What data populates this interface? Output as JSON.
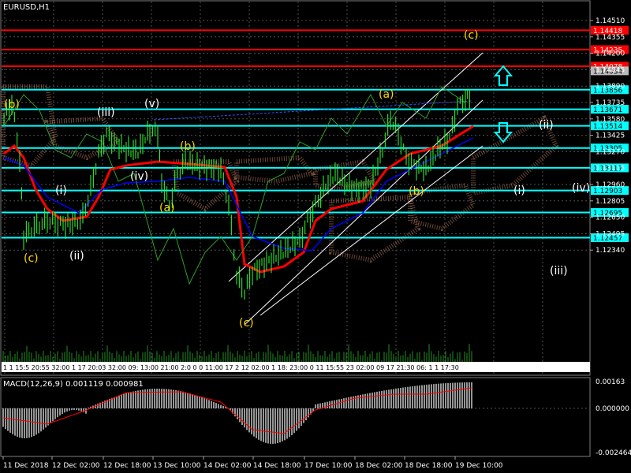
{
  "symbol_title": "EURUSD,H1",
  "macd_label": "MACD(12,26,9) 0.001119 0.000981",
  "colors": {
    "background": "#000000",
    "grid": "#505050",
    "red_level": "#ff0000",
    "cyan_level": "#00ffff",
    "price_line": "#33cc33",
    "ma_red": "#ff0000",
    "ma_blue": "#0000ff",
    "wave_label": "#ffd800"
  },
  "price_axis_ticks": [
    "1.14510",
    "1.14355",
    "1.14200",
    "1.14045",
    "1.13890",
    "1.13735",
    "1.13580",
    "1.13425",
    "1.13270",
    "1.13115",
    "1.12960",
    "1.12805",
    "1.12650",
    "1.12495",
    "1.12340"
  ],
  "price_levels": [
    {
      "label": "1.14418",
      "kind": "red"
    },
    {
      "label": "1.14235",
      "kind": "red"
    },
    {
      "label": "1.14078",
      "kind": "red"
    },
    {
      "label": "1.14034",
      "kind": "gray"
    },
    {
      "label": "1.13856",
      "kind": "cyan"
    },
    {
      "label": "1.13671",
      "kind": "cyan"
    },
    {
      "label": "1.13514",
      "kind": "cyan"
    },
    {
      "label": "1.13305",
      "kind": "cyan"
    },
    {
      "label": "1.13117",
      "kind": "cyan"
    },
    {
      "label": "1.12903",
      "kind": "cyan"
    },
    {
      "label": "1.12695",
      "kind": "cyan"
    },
    {
      "label": "1.12457",
      "kind": "cyan"
    }
  ],
  "macd_axis_ticks": [
    "0.00163",
    "0.000000",
    "-0.002464"
  ],
  "time_axis_ticks": [
    "11 Dec 2018",
    "12 Dec 02:00",
    "12 Dec 18:00",
    "13 Dec 10:00",
    "14 Dec 02:00",
    "14 Dec 18:00",
    "17 Dec 10:00",
    "18 Dec 02:00",
    "18 Dec 18:00",
    "19 Dec 10:00"
  ],
  "wave_labels_yellow": [
    "(b)",
    "(c)",
    "(a)",
    "(b)",
    "(c)",
    "(a)",
    "(b)",
    "(c)"
  ],
  "wave_labels_white": [
    "(iii)",
    "(v)",
    "(iv)",
    "(i)",
    "(ii)",
    "(ii)",
    "(i)",
    "(iv)",
    "(iii)"
  ],
  "time_strip": "1 1 15:5 20:55 32:00  1 17 20:03 32:00 09: 13:00  21:00 2:0 0 0 11:00 17 2 12 02:00  1  18: 23:00  0 11  15:55  23 02:00  09  17 21:30  06: 1 1 17:30"
}
